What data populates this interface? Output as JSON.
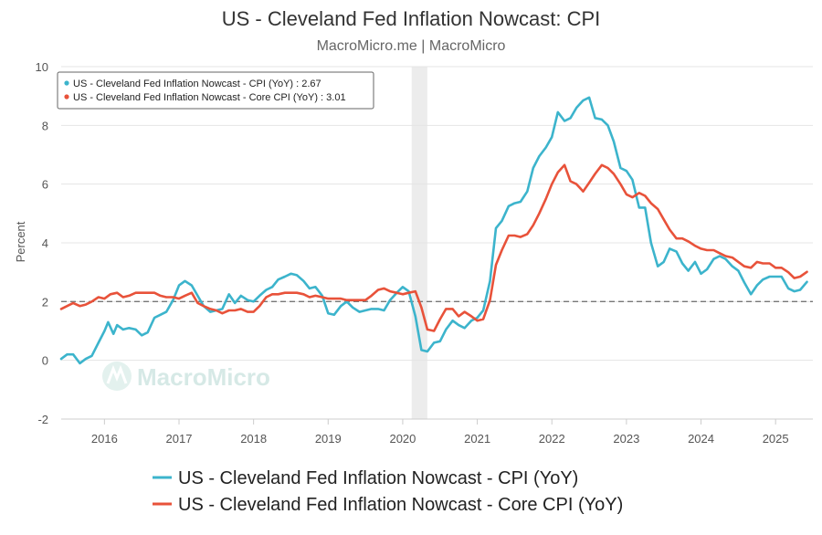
{
  "chart_data": {
    "type": "line",
    "title": "US - Cleveland Fed Inflation Nowcast: CPI",
    "subtitle": "MacroMicro.me | MacroMicro",
    "ylabel": "Percent",
    "ylim": [
      -2,
      10
    ],
    "yticks": [
      -2,
      0,
      2,
      4,
      6,
      8,
      10
    ],
    "xlim": [
      2015.42,
      2025.5
    ],
    "xticks": [
      2016,
      2017,
      2018,
      2019,
      2020,
      2021,
      2022,
      2023,
      2024,
      2025
    ],
    "xtick_labels": [
      "2016",
      "2017",
      "2018",
      "2019",
      "2020",
      "2021",
      "2022",
      "2023",
      "2024",
      "2025"
    ],
    "grid": true,
    "reference_line": {
      "y": 2,
      "style": "dashed"
    },
    "shaded_region": {
      "x": [
        2020.12,
        2020.33
      ]
    },
    "watermark": "MacroMicro",
    "tooltip": [
      {
        "series": "US - Cleveland Fed Inflation Nowcast - CPI (YoY)",
        "value": "2.67",
        "text": "US - Cleveland Fed Inflation Nowcast - CPI (YoY) : 2.67"
      },
      {
        "series": "US - Cleveland Fed Inflation Nowcast - Core CPI (YoY)",
        "value": "3.01",
        "text": "US - Cleveland Fed Inflation Nowcast - Core CPI (YoY) : 3.01"
      }
    ],
    "legend_position": "bottom",
    "series": [
      {
        "name": "US - Cleveland Fed Inflation Nowcast - CPI (YoY)",
        "color": "#3cb4cc",
        "points": [
          [
            2015.42,
            0.05
          ],
          [
            2015.5,
            0.2
          ],
          [
            2015.58,
            0.2
          ],
          [
            2015.67,
            -0.1
          ],
          [
            2015.75,
            0.05
          ],
          [
            2015.83,
            0.15
          ],
          [
            2015.92,
            0.6
          ],
          [
            2016.0,
            1.0
          ],
          [
            2016.05,
            1.3
          ],
          [
            2016.12,
            0.9
          ],
          [
            2016.17,
            1.2
          ],
          [
            2016.25,
            1.05
          ],
          [
            2016.33,
            1.1
          ],
          [
            2016.42,
            1.05
          ],
          [
            2016.5,
            0.85
          ],
          [
            2016.58,
            0.95
          ],
          [
            2016.67,
            1.45
          ],
          [
            2016.75,
            1.55
          ],
          [
            2016.83,
            1.65
          ],
          [
            2016.92,
            2.05
          ],
          [
            2017.0,
            2.55
          ],
          [
            2017.08,
            2.7
          ],
          [
            2017.17,
            2.55
          ],
          [
            2017.25,
            2.2
          ],
          [
            2017.33,
            1.85
          ],
          [
            2017.42,
            1.65
          ],
          [
            2017.5,
            1.7
          ],
          [
            2017.58,
            1.75
          ],
          [
            2017.67,
            2.25
          ],
          [
            2017.75,
            1.95
          ],
          [
            2017.83,
            2.2
          ],
          [
            2017.92,
            2.05
          ],
          [
            2018.0,
            2.0
          ],
          [
            2018.08,
            2.2
          ],
          [
            2018.17,
            2.4
          ],
          [
            2018.25,
            2.5
          ],
          [
            2018.33,
            2.75
          ],
          [
            2018.42,
            2.85
          ],
          [
            2018.5,
            2.95
          ],
          [
            2018.58,
            2.9
          ],
          [
            2018.67,
            2.7
          ],
          [
            2018.75,
            2.45
          ],
          [
            2018.83,
            2.5
          ],
          [
            2018.92,
            2.2
          ],
          [
            2019.0,
            1.6
          ],
          [
            2019.08,
            1.55
          ],
          [
            2019.17,
            1.85
          ],
          [
            2019.25,
            2.0
          ],
          [
            2019.33,
            1.8
          ],
          [
            2019.42,
            1.65
          ],
          [
            2019.5,
            1.7
          ],
          [
            2019.58,
            1.75
          ],
          [
            2019.67,
            1.75
          ],
          [
            2019.75,
            1.7
          ],
          [
            2019.83,
            2.05
          ],
          [
            2019.92,
            2.3
          ],
          [
            2020.0,
            2.5
          ],
          [
            2020.08,
            2.35
          ],
          [
            2020.17,
            1.5
          ],
          [
            2020.25,
            0.35
          ],
          [
            2020.33,
            0.3
          ],
          [
            2020.42,
            0.6
          ],
          [
            2020.5,
            0.65
          ],
          [
            2020.58,
            1.05
          ],
          [
            2020.67,
            1.35
          ],
          [
            2020.75,
            1.2
          ],
          [
            2020.83,
            1.1
          ],
          [
            2020.92,
            1.35
          ],
          [
            2021.0,
            1.45
          ],
          [
            2021.08,
            1.7
          ],
          [
            2021.17,
            2.7
          ],
          [
            2021.25,
            4.5
          ],
          [
            2021.33,
            4.75
          ],
          [
            2021.42,
            5.25
          ],
          [
            2021.5,
            5.35
          ],
          [
            2021.58,
            5.4
          ],
          [
            2021.67,
            5.75
          ],
          [
            2021.75,
            6.55
          ],
          [
            2021.83,
            6.95
          ],
          [
            2021.92,
            7.25
          ],
          [
            2022.0,
            7.6
          ],
          [
            2022.08,
            8.45
          ],
          [
            2022.17,
            8.15
          ],
          [
            2022.25,
            8.25
          ],
          [
            2022.33,
            8.6
          ],
          [
            2022.42,
            8.85
          ],
          [
            2022.5,
            8.95
          ],
          [
            2022.58,
            8.25
          ],
          [
            2022.67,
            8.2
          ],
          [
            2022.75,
            8.0
          ],
          [
            2022.83,
            7.45
          ],
          [
            2022.92,
            6.55
          ],
          [
            2023.0,
            6.45
          ],
          [
            2023.08,
            6.15
          ],
          [
            2023.17,
            5.2
          ],
          [
            2023.25,
            5.2
          ],
          [
            2023.33,
            4.0
          ],
          [
            2023.42,
            3.2
          ],
          [
            2023.5,
            3.35
          ],
          [
            2023.58,
            3.8
          ],
          [
            2023.67,
            3.7
          ],
          [
            2023.75,
            3.3
          ],
          [
            2023.83,
            3.05
          ],
          [
            2023.92,
            3.35
          ],
          [
            2024.0,
            2.95
          ],
          [
            2024.08,
            3.1
          ],
          [
            2024.17,
            3.45
          ],
          [
            2024.25,
            3.55
          ],
          [
            2024.33,
            3.45
          ],
          [
            2024.42,
            3.2
          ],
          [
            2024.5,
            3.05
          ],
          [
            2024.58,
            2.65
          ],
          [
            2024.67,
            2.25
          ],
          [
            2024.75,
            2.55
          ],
          [
            2024.83,
            2.75
          ],
          [
            2024.92,
            2.85
          ],
          [
            2025.0,
            2.85
          ],
          [
            2025.08,
            2.85
          ],
          [
            2025.17,
            2.45
          ],
          [
            2025.25,
            2.35
          ],
          [
            2025.33,
            2.4
          ],
          [
            2025.42,
            2.67
          ]
        ]
      },
      {
        "name": "US - Cleveland Fed Inflation Nowcast - Core CPI (YoY)",
        "color": "#e8523a",
        "points": [
          [
            2015.42,
            1.75
          ],
          [
            2015.5,
            1.85
          ],
          [
            2015.58,
            1.95
          ],
          [
            2015.67,
            1.85
          ],
          [
            2015.75,
            1.9
          ],
          [
            2015.83,
            2.0
          ],
          [
            2015.92,
            2.15
          ],
          [
            2016.0,
            2.1
          ],
          [
            2016.08,
            2.25
          ],
          [
            2016.17,
            2.3
          ],
          [
            2016.25,
            2.15
          ],
          [
            2016.33,
            2.2
          ],
          [
            2016.42,
            2.3
          ],
          [
            2016.5,
            2.3
          ],
          [
            2016.58,
            2.3
          ],
          [
            2016.67,
            2.3
          ],
          [
            2016.75,
            2.2
          ],
          [
            2016.83,
            2.15
          ],
          [
            2016.92,
            2.15
          ],
          [
            2017.0,
            2.1
          ],
          [
            2017.08,
            2.2
          ],
          [
            2017.17,
            2.3
          ],
          [
            2017.25,
            1.95
          ],
          [
            2017.33,
            1.85
          ],
          [
            2017.42,
            1.75
          ],
          [
            2017.5,
            1.7
          ],
          [
            2017.58,
            1.6
          ],
          [
            2017.67,
            1.7
          ],
          [
            2017.75,
            1.7
          ],
          [
            2017.83,
            1.75
          ],
          [
            2017.92,
            1.65
          ],
          [
            2018.0,
            1.65
          ],
          [
            2018.08,
            1.85
          ],
          [
            2018.17,
            2.15
          ],
          [
            2018.25,
            2.25
          ],
          [
            2018.33,
            2.25
          ],
          [
            2018.42,
            2.3
          ],
          [
            2018.5,
            2.3
          ],
          [
            2018.58,
            2.3
          ],
          [
            2018.67,
            2.25
          ],
          [
            2018.75,
            2.15
          ],
          [
            2018.83,
            2.2
          ],
          [
            2018.92,
            2.15
          ],
          [
            2019.0,
            2.1
          ],
          [
            2019.08,
            2.1
          ],
          [
            2019.17,
            2.1
          ],
          [
            2019.25,
            2.05
          ],
          [
            2019.33,
            2.05
          ],
          [
            2019.42,
            2.05
          ],
          [
            2019.5,
            2.05
          ],
          [
            2019.58,
            2.2
          ],
          [
            2019.67,
            2.4
          ],
          [
            2019.75,
            2.45
          ],
          [
            2019.83,
            2.35
          ],
          [
            2019.92,
            2.3
          ],
          [
            2020.0,
            2.25
          ],
          [
            2020.08,
            2.3
          ],
          [
            2020.17,
            2.35
          ],
          [
            2020.25,
            1.8
          ],
          [
            2020.33,
            1.05
          ],
          [
            2020.42,
            1.0
          ],
          [
            2020.5,
            1.4
          ],
          [
            2020.58,
            1.75
          ],
          [
            2020.67,
            1.75
          ],
          [
            2020.75,
            1.5
          ],
          [
            2020.83,
            1.65
          ],
          [
            2020.92,
            1.5
          ],
          [
            2021.0,
            1.35
          ],
          [
            2021.08,
            1.4
          ],
          [
            2021.17,
            2.05
          ],
          [
            2021.25,
            3.25
          ],
          [
            2021.33,
            3.75
          ],
          [
            2021.42,
            4.25
          ],
          [
            2021.5,
            4.25
          ],
          [
            2021.58,
            4.2
          ],
          [
            2021.67,
            4.3
          ],
          [
            2021.75,
            4.6
          ],
          [
            2021.83,
            5.0
          ],
          [
            2021.92,
            5.5
          ],
          [
            2022.0,
            6.0
          ],
          [
            2022.08,
            6.4
          ],
          [
            2022.17,
            6.65
          ],
          [
            2022.25,
            6.1
          ],
          [
            2022.33,
            6.0
          ],
          [
            2022.42,
            5.75
          ],
          [
            2022.5,
            6.05
          ],
          [
            2022.58,
            6.35
          ],
          [
            2022.67,
            6.65
          ],
          [
            2022.75,
            6.55
          ],
          [
            2022.83,
            6.35
          ],
          [
            2022.92,
            6.0
          ],
          [
            2023.0,
            5.65
          ],
          [
            2023.08,
            5.55
          ],
          [
            2023.17,
            5.7
          ],
          [
            2023.25,
            5.6
          ],
          [
            2023.33,
            5.35
          ],
          [
            2023.42,
            5.15
          ],
          [
            2023.5,
            4.8
          ],
          [
            2023.58,
            4.45
          ],
          [
            2023.67,
            4.15
          ],
          [
            2023.75,
            4.15
          ],
          [
            2023.83,
            4.05
          ],
          [
            2023.92,
            3.9
          ],
          [
            2024.0,
            3.8
          ],
          [
            2024.08,
            3.75
          ],
          [
            2024.17,
            3.75
          ],
          [
            2024.25,
            3.65
          ],
          [
            2024.33,
            3.55
          ],
          [
            2024.42,
            3.5
          ],
          [
            2024.5,
            3.35
          ],
          [
            2024.58,
            3.2
          ],
          [
            2024.67,
            3.15
          ],
          [
            2024.75,
            3.35
          ],
          [
            2024.83,
            3.3
          ],
          [
            2024.92,
            3.3
          ],
          [
            2025.0,
            3.15
          ],
          [
            2025.08,
            3.15
          ],
          [
            2025.17,
            3.0
          ],
          [
            2025.25,
            2.8
          ],
          [
            2025.33,
            2.85
          ],
          [
            2025.42,
            3.01
          ]
        ]
      }
    ]
  }
}
